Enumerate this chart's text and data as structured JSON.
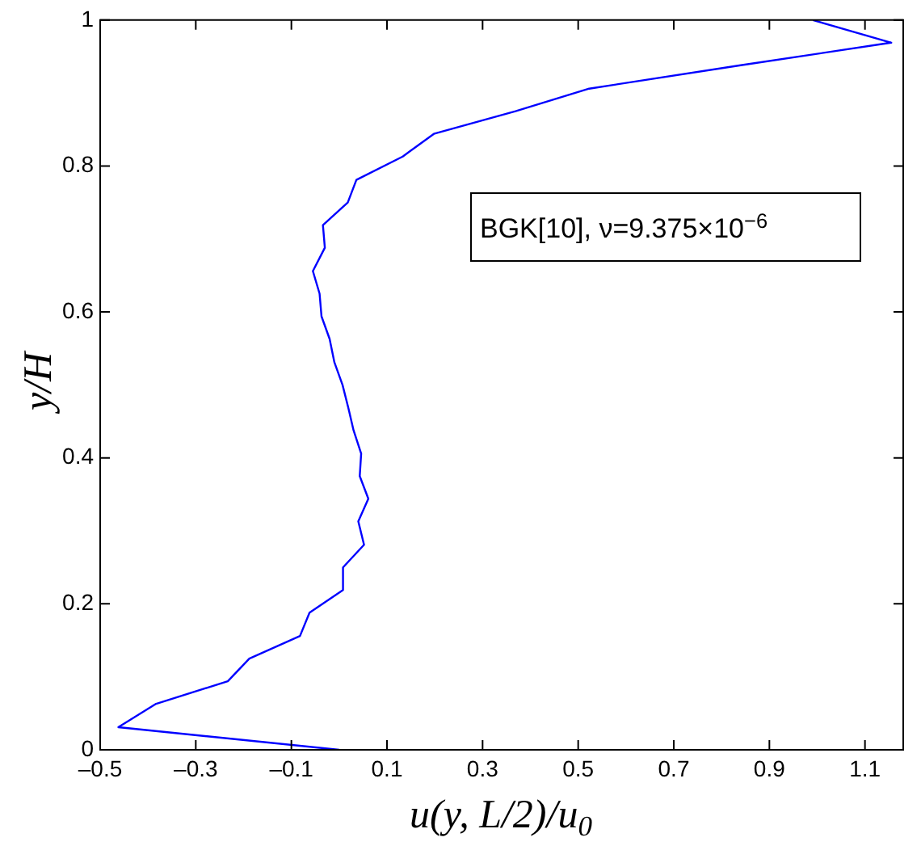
{
  "chart_data": {
    "type": "line",
    "xlabel": "u(y, L/2)/u$_{0}$",
    "ylabel": "y/H",
    "x": [
      0.0,
      -0.462,
      -0.383,
      -0.233,
      -0.188,
      -0.082,
      -0.062,
      0.008,
      0.008,
      0.052,
      0.04,
      0.061,
      0.043,
      0.046,
      0.03,
      0.019,
      0.007,
      -0.01,
      -0.02,
      -0.037,
      -0.041,
      -0.055,
      -0.03,
      -0.034,
      0.018,
      0.036,
      0.133,
      0.198,
      0.369,
      0.523,
      0.84,
      1.155,
      0.991
    ],
    "series": [
      {
        "color": "#0000ff",
        "values": [
          0,
          0.031,
          0.063,
          0.094,
          0.125,
          0.156,
          0.188,
          0.219,
          0.25,
          0.281,
          0.313,
          0.344,
          0.375,
          0.406,
          0.438,
          0.469,
          0.5,
          0.531,
          0.563,
          0.594,
          0.625,
          0.656,
          0.688,
          0.719,
          0.75,
          0.781,
          0.813,
          0.844,
          0.875,
          0.906,
          0.938,
          0.969,
          1
        ]
      }
    ],
    "xlim": [
      -0.5,
      1.18
    ],
    "ylim": [
      0,
      1
    ],
    "xticks": [
      {
        "value": -0.5,
        "label": "–0.5"
      },
      {
        "value": -0.3,
        "label": "–0.3"
      },
      {
        "value": -0.1,
        "label": "–0.1"
      },
      0.1,
      0.3,
      0.5,
      0.7,
      0.9,
      1.1
    ],
    "yticks": [
      0,
      0.2,
      0.4,
      0.6,
      0.8,
      1
    ],
    "annotations": [
      "BGK[10], ν=9.375×10$^{−6}$"
    ],
    "grid": false,
    "legend": false,
    "marker": "none",
    "line_style": "solid"
  }
}
